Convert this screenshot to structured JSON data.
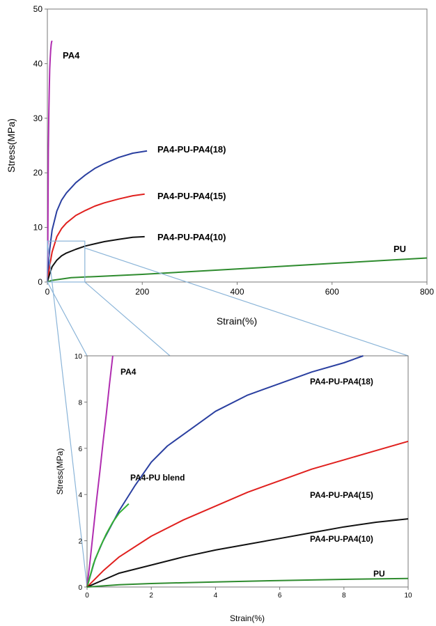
{
  "chart_data": [
    {
      "type": "line",
      "xlabel": "Strain(%)",
      "ylabel": "Stress(MPa)",
      "xlim": [
        0,
        800
      ],
      "ylim": [
        0,
        50
      ],
      "xticks": [
        "0",
        "200",
        "400",
        "600",
        "800"
      ],
      "yticks": [
        "0",
        "10",
        "20",
        "30",
        "40",
        "50"
      ],
      "series": [
        {
          "name": "PA4",
          "color": "#b02cb0",
          "x": [
            0,
            1,
            2,
            3,
            4,
            5,
            6,
            7,
            8,
            9,
            10
          ],
          "y": [
            0,
            8,
            24,
            30,
            35,
            39,
            41,
            42.5,
            43.5,
            44,
            44.2
          ]
        },
        {
          "name": "PA4-PU-PA4(18)",
          "color": "#2a3fa0",
          "x": [
            0,
            5,
            10,
            20,
            30,
            40,
            60,
            80,
            100,
            120,
            150,
            180,
            210
          ],
          "y": [
            0,
            6,
            9.5,
            13,
            15,
            16.3,
            18.2,
            19.6,
            20.8,
            21.7,
            22.8,
            23.6,
            24.0
          ]
        },
        {
          "name": "PA4-PU-PA4(15)",
          "color": "#e0201e",
          "x": [
            0,
            5,
            10,
            20,
            30,
            40,
            60,
            80,
            100,
            120,
            150,
            180,
            205
          ],
          "y": [
            0,
            3,
            5.5,
            8.3,
            9.8,
            10.8,
            12.2,
            13.1,
            13.9,
            14.5,
            15.2,
            15.8,
            16.1
          ]
        },
        {
          "name": "PA4-PU-PA4(10)",
          "color": "#111111",
          "x": [
            0,
            5,
            10,
            20,
            30,
            40,
            60,
            80,
            100,
            120,
            150,
            180,
            205
          ],
          "y": [
            0,
            1.5,
            2.8,
            4.0,
            4.8,
            5.3,
            6.0,
            6.6,
            7.0,
            7.4,
            7.8,
            8.2,
            8.3
          ]
        },
        {
          "name": "PU",
          "color": "#2e8b2e",
          "x": [
            0,
            10,
            50,
            100,
            200,
            300,
            400,
            500,
            600,
            700,
            800
          ],
          "y": [
            0,
            0.3,
            0.8,
            1.0,
            1.4,
            1.9,
            2.4,
            2.9,
            3.4,
            3.9,
            4.4
          ]
        }
      ],
      "inset_region": {
        "x": [
          0,
          10
        ],
        "y": [
          0,
          7.5
        ]
      }
    },
    {
      "type": "line",
      "xlabel": "Strain(%)",
      "ylabel": "Stress(MPa)",
      "xlim": [
        0,
        10
      ],
      "ylim": [
        0,
        10
      ],
      "xticks": [
        "0",
        "2",
        "4",
        "6",
        "8",
        "10"
      ],
      "yticks": [
        "0",
        "2",
        "4",
        "6",
        "8",
        "10"
      ],
      "series": [
        {
          "name": "PA4",
          "color": "#b02cb0",
          "x": [
            0,
            0.1,
            0.2,
            0.3,
            0.4,
            0.5,
            0.6,
            0.7,
            0.8
          ],
          "y": [
            0,
            1.2,
            2.5,
            3.8,
            5.0,
            6.3,
            7.5,
            8.8,
            10
          ]
        },
        {
          "name": "PA4-PU-PA4(18)",
          "color": "#2a3fa0",
          "x": [
            0,
            0.25,
            0.5,
            1,
            1.5,
            2,
            2.5,
            3,
            3.5,
            4,
            5,
            6,
            7,
            8,
            8.6
          ],
          "y": [
            0,
            1.2,
            2.0,
            3.3,
            4.4,
            5.4,
            6.1,
            6.6,
            7.1,
            7.6,
            8.3,
            8.8,
            9.3,
            9.7,
            10
          ]
        },
        {
          "name": "PA4-PU blend",
          "color": "#33b033",
          "x": [
            0,
            0.2,
            0.4,
            0.6,
            0.8,
            1.0,
            1.3
          ],
          "y": [
            0,
            1.0,
            1.7,
            2.3,
            2.8,
            3.2,
            3.6
          ]
        },
        {
          "name": "PA4-PU-PA4(15)",
          "color": "#e0201e",
          "x": [
            0,
            0.5,
            1,
            2,
            3,
            4,
            5,
            6,
            7,
            8,
            9,
            10
          ],
          "y": [
            0,
            0.7,
            1.3,
            2.2,
            2.9,
            3.5,
            4.1,
            4.6,
            5.1,
            5.5,
            5.9,
            6.3
          ]
        },
        {
          "name": "PA4-PU-PA4(10)",
          "color": "#111111",
          "x": [
            0,
            0.5,
            1,
            2,
            3,
            4,
            5,
            6,
            7,
            8,
            9,
            10
          ],
          "y": [
            0,
            0.3,
            0.6,
            0.95,
            1.3,
            1.6,
            1.85,
            2.1,
            2.35,
            2.6,
            2.8,
            2.95
          ]
        },
        {
          "name": "PU",
          "color": "#2e8b2e",
          "x": [
            0,
            1,
            2,
            4,
            6,
            8,
            10
          ],
          "y": [
            0,
            0.1,
            0.15,
            0.22,
            0.28,
            0.33,
            0.37
          ]
        }
      ]
    }
  ]
}
